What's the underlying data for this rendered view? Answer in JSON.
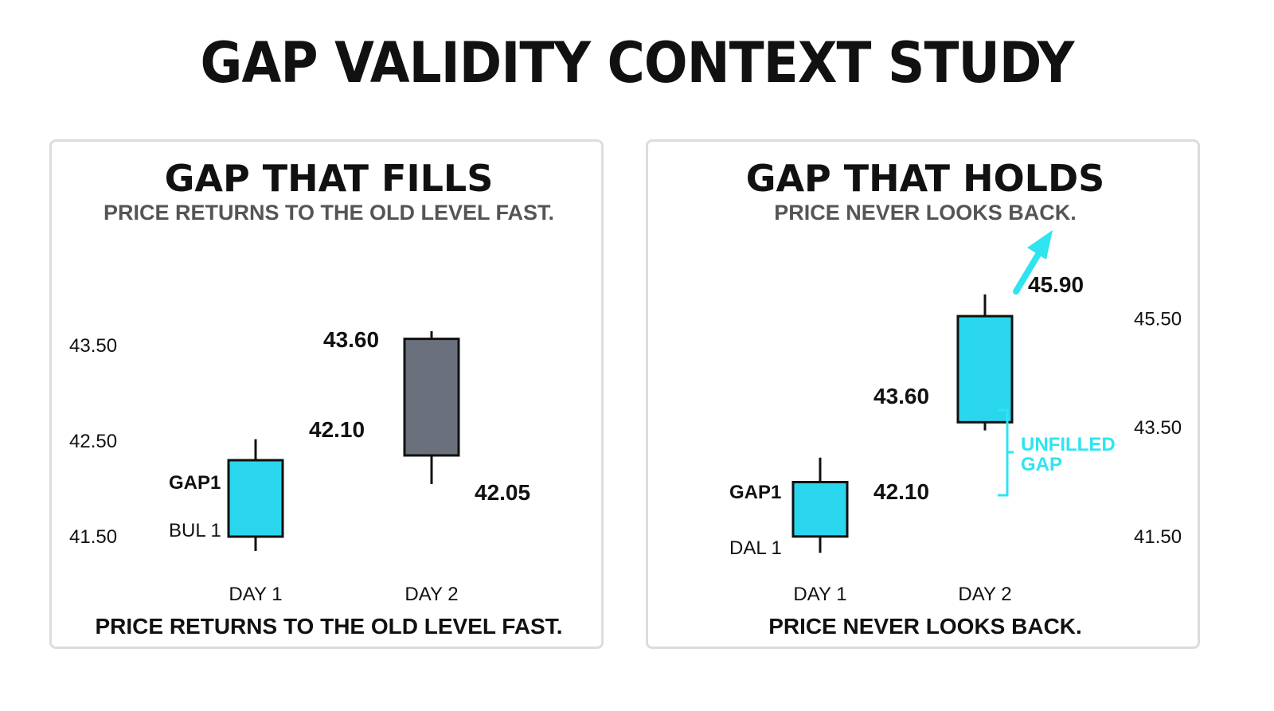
{
  "title": "GAP VALIDITY CONTEXT STUDY",
  "colors": {
    "bull": "#2ad6ee",
    "bear": "#6a707c",
    "accent": "#2ee4f0",
    "border": "#dcdcdc",
    "text": "#111111",
    "subtext": "#555555"
  },
  "chart_data": [
    {
      "type": "candlestick",
      "title": "GAP THAT FILLS",
      "subtitle": "PRICE RETURNS TO THE OLD LEVEL FAST.",
      "caption": "PRICE RETURNS TO THE OLD LEVEL FAST.",
      "categories": [
        "DAY 1",
        "DAY 2"
      ],
      "ylim": [
        41.4,
        44.0
      ],
      "yticks": [
        {
          "value": 43.5,
          "label": "43.50"
        },
        {
          "value": 42.5,
          "label": "42.50"
        },
        {
          "value": 41.5,
          "label": "41.50"
        }
      ],
      "candles": [
        {
          "category": "DAY 1",
          "open": 41.5,
          "close": 42.3,
          "high": 42.52,
          "low": 41.35,
          "color": "bull"
        },
        {
          "category": "DAY 2",
          "open": 42.35,
          "close": 43.57,
          "high": 43.65,
          "low": 42.05,
          "color": "bear"
        }
      ],
      "price_labels": [
        "42.10",
        "43.60",
        "42.05"
      ],
      "annotations": [
        "GAP1",
        "BUL 1"
      ]
    },
    {
      "type": "candlestick",
      "title": "GAP THAT HOLDS",
      "subtitle": "PRICE NEVER LOOKS BACK.",
      "caption": "PRICE NEVER LOOKS BACK.",
      "categories": [
        "DAY 1",
        "DAY 2"
      ],
      "ylim": [
        41.0,
        47.0
      ],
      "yticks": [
        {
          "value": 45.5,
          "label": "45.50"
        },
        {
          "value": 43.5,
          "label": "43.50"
        },
        {
          "value": 41.5,
          "label": "41.50"
        }
      ],
      "candles": [
        {
          "category": "DAY 1",
          "open": 41.5,
          "close": 42.5,
          "high": 42.95,
          "low": 41.2,
          "color": "bull"
        },
        {
          "category": "DAY 2",
          "open": 43.6,
          "close": 45.55,
          "high": 45.95,
          "low": 43.45,
          "color": "bull"
        }
      ],
      "price_labels": [
        "45.90",
        "43.60",
        "42.10"
      ],
      "annotations": [
        "GAP1",
        "DAL 1"
      ],
      "gap_label": [
        "UNFILLED",
        "GAP"
      ]
    }
  ]
}
